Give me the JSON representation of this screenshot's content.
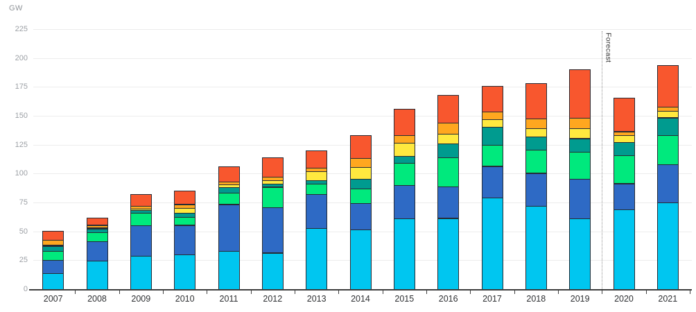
{
  "chart_data": {
    "type": "bar",
    "variant": "stacked",
    "axis_label": "GW",
    "title": "",
    "xlabel": "",
    "ylabel": "GW",
    "ylim": [
      0,
      225
    ],
    "grid": true,
    "legend": "none",
    "y_ticks": [
      0,
      25,
      50,
      75,
      100,
      125,
      150,
      175,
      200,
      225
    ],
    "categories": [
      "2007",
      "2008",
      "2009",
      "2010",
      "2011",
      "2012",
      "2013",
      "2014",
      "2015",
      "2016",
      "2017",
      "2018",
      "2019",
      "2020",
      "2021"
    ],
    "series": [
      {
        "name": "segment-cyan",
        "color": "#00c6f0",
        "values": [
          14,
          24.5,
          29,
          30,
          33,
          31.5,
          53,
          51.5,
          61,
          61.5,
          79,
          72,
          61,
          69,
          75
        ]
      },
      {
        "name": "segment-blue",
        "color": "#2e6ac5",
        "values": [
          11.5,
          17,
          26,
          25.5,
          40.5,
          39.5,
          29,
          23,
          29,
          27.5,
          27.5,
          28.5,
          34.5,
          22.5,
          33
        ]
      },
      {
        "name": "segment-green",
        "color": "#00e97d",
        "values": [
          7.5,
          8,
          11,
          7,
          10,
          17.5,
          9,
          12.5,
          19,
          25,
          18.5,
          20,
          23.5,
          24.5,
          25
        ]
      },
      {
        "name": "segment-teal",
        "color": "#009b8f",
        "values": [
          4.5,
          3,
          2.5,
          3.5,
          4.5,
          2.5,
          3,
          8.5,
          6,
          12,
          15.5,
          11.5,
          11.5,
          11.5,
          15.5
        ]
      },
      {
        "name": "segment-yellow",
        "color": "#ffe93f",
        "values": [
          1,
          1,
          1,
          4,
          2.5,
          3.5,
          8,
          10,
          11.5,
          8.5,
          6.5,
          7,
          8.5,
          6,
          5.5
        ]
      },
      {
        "name": "segment-amber",
        "color": "#ffa71f",
        "values": [
          4,
          2,
          2.5,
          3.5,
          2.5,
          3,
          3,
          8,
          6.5,
          9.5,
          6.5,
          8.5,
          9,
          3,
          4
        ]
      },
      {
        "name": "segment-red-orange",
        "color": "#f8572e",
        "values": [
          8,
          6.5,
          10,
          11.5,
          13.5,
          16.5,
          15,
          20,
          23,
          24,
          22.5,
          30.5,
          42,
          29,
          36
        ]
      }
    ],
    "forecast": {
      "label": "Forecast",
      "after_category": "2019"
    },
    "colors": {
      "background": "#ffffff",
      "gridline": "#ececec",
      "axis": "#3d3d3d",
      "y_tick_text": "#9b9fa4",
      "x_tick_text": "#2e3033",
      "segment_outline": "#262b34",
      "forecast_line": "#8f8f8f",
      "forecast_text": "#333333"
    }
  }
}
